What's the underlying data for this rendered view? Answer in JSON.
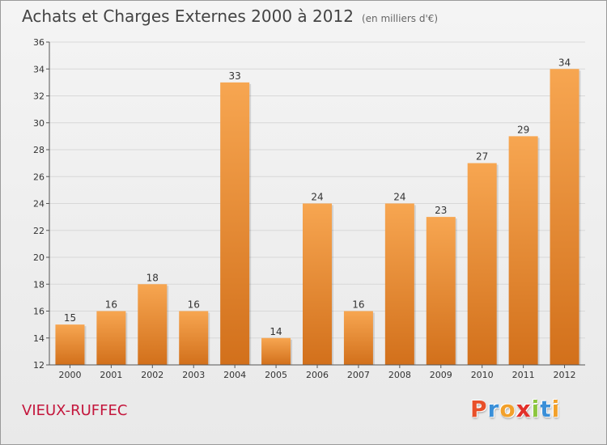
{
  "page": {
    "title": "Achats et Charges Externes 2000 à 2012",
    "subtitle": "(en milliers d'€)",
    "location": "VIEUX-RUFFEC",
    "logo": "Proxiti"
  },
  "logo_colors": [
    "#e8502a",
    "#3a8fd8",
    "#f2a02a",
    "#e2302a",
    "#8cc63e",
    "#3a8fd8",
    "#f2a02a"
  ],
  "colors": {
    "bar_top": "#f7a651",
    "bar_bottom": "#d2701b",
    "grid": "#d8d8d8",
    "axis": "#555555",
    "title": "#444444",
    "location": "#c4163c"
  },
  "chart_data": {
    "type": "bar",
    "title": "Achats et Charges Externes 2000 à 2012",
    "subtitle": "(en milliers d'€)",
    "xlabel": "",
    "ylabel": "",
    "categories": [
      "2000",
      "2001",
      "2002",
      "2003",
      "2004",
      "2005",
      "2006",
      "2007",
      "2008",
      "2009",
      "2010",
      "2011",
      "2012"
    ],
    "values": [
      15,
      16,
      18,
      16,
      33,
      14,
      24,
      16,
      24,
      23,
      27,
      29,
      34
    ],
    "ylim": [
      12,
      36
    ],
    "yticks": [
      12,
      14,
      16,
      18,
      20,
      22,
      24,
      26,
      28,
      30,
      32,
      34,
      36
    ],
    "grid": true,
    "legend": "none"
  }
}
